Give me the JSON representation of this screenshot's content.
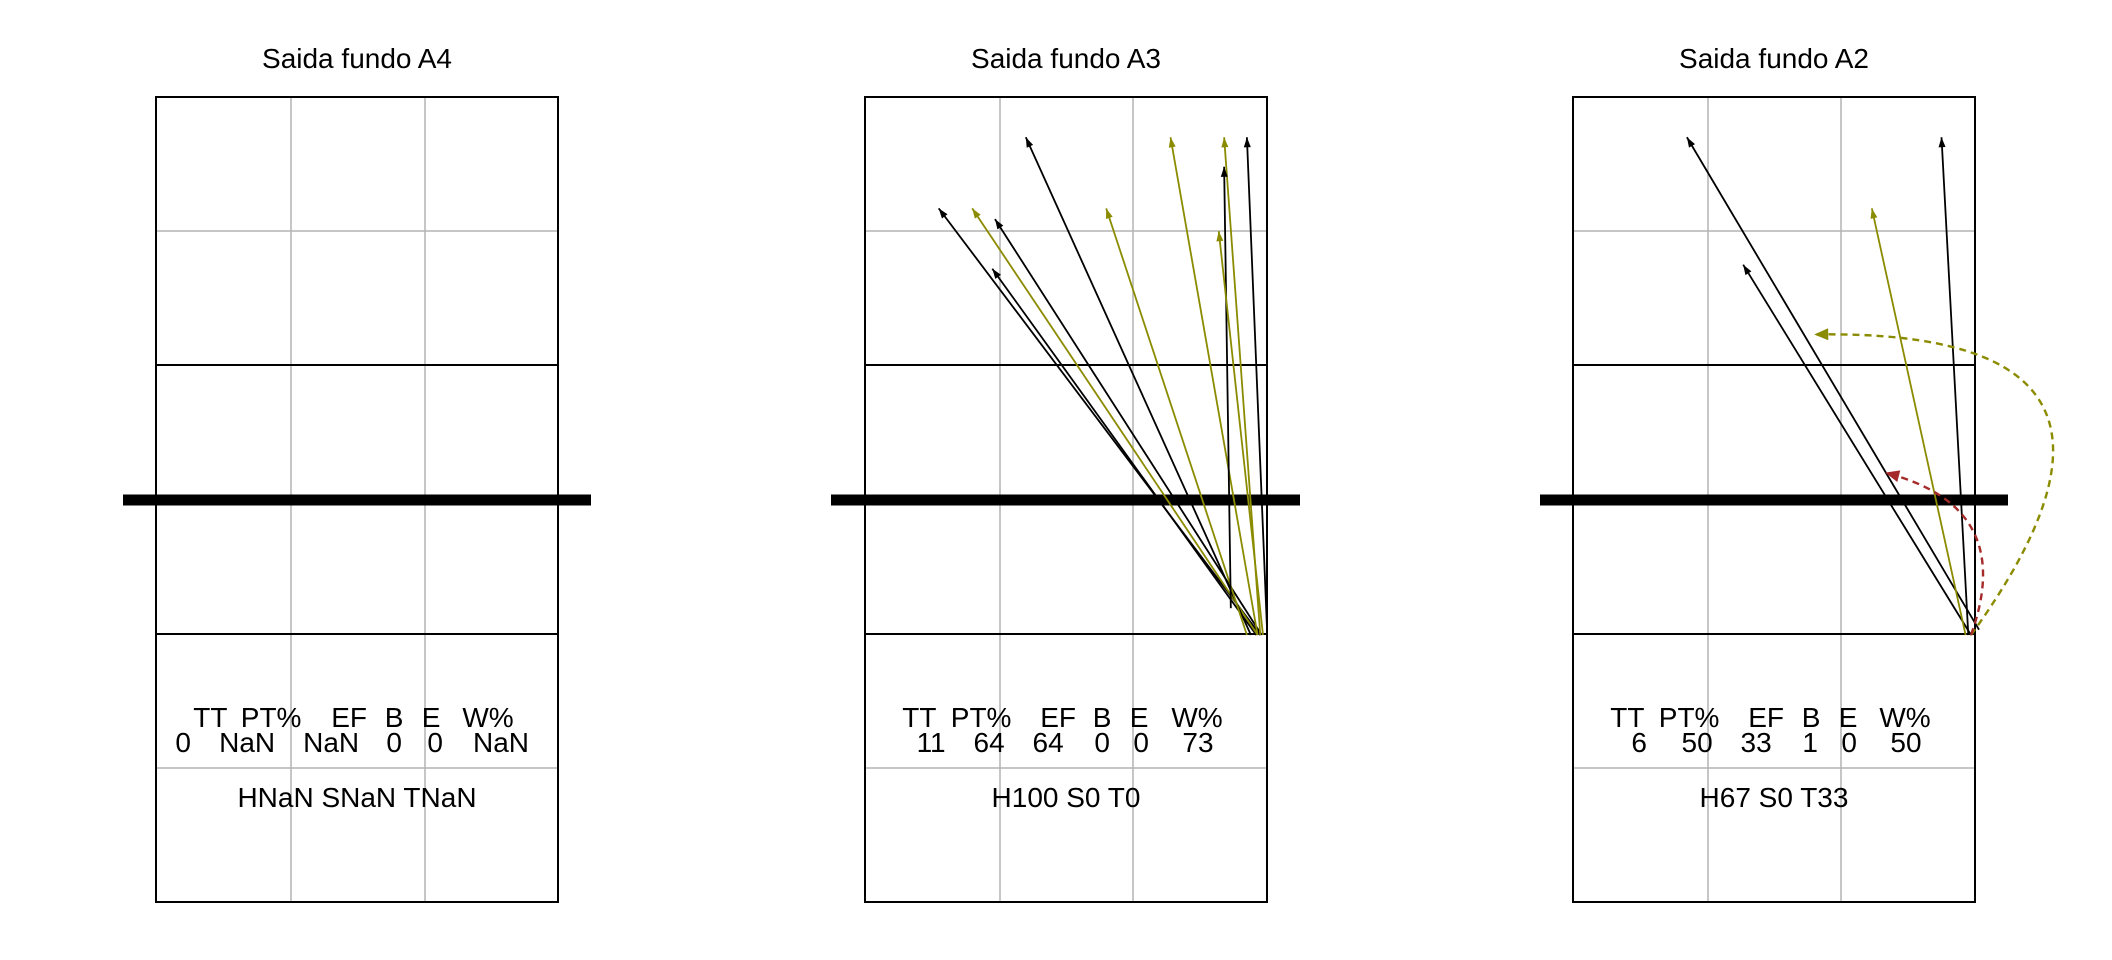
{
  "panels": [
    {
      "title": "Saida fundo A4",
      "stats_header": [
        "TT",
        "PT%",
        "EF",
        "B",
        "E",
        "W%"
      ],
      "stats_values": [
        "0",
        "NaN",
        "NaN",
        "0",
        "0",
        "NaN"
      ],
      "summary": "HNaN SNaN TNaN",
      "arrows": []
    },
    {
      "title": "Saida fundo A3",
      "stats_header": [
        "TT",
        "PT%",
        "EF",
        "B",
        "E",
        "W%"
      ],
      "stats_values": [
        "11",
        "64",
        "64",
        "0",
        "0",
        "73"
      ],
      "summary": "H100 S0 T0",
      "arrows": [
        {
          "from": [
            2.95,
            1.99
          ],
          "to": [
            0.55,
            5.17
          ],
          "color": "#000000"
        },
        {
          "from": [
            2.92,
            1.99
          ],
          "to": [
            0.95,
            4.72
          ],
          "color": "#000000"
        },
        {
          "from": [
            2.93,
            1.99
          ],
          "to": [
            0.8,
            5.17
          ],
          "color": "#8B8B00"
        },
        {
          "from": [
            2.96,
            1.99
          ],
          "to": [
            0.97,
            5.09
          ],
          "color": "#000000"
        },
        {
          "from": [
            2.88,
            1.99
          ],
          "to": [
            1.2,
            5.7
          ],
          "color": "#000000"
        },
        {
          "from": [
            2.85,
            1.99
          ],
          "to": [
            1.8,
            5.17
          ],
          "color": "#8B8B00"
        },
        {
          "from": [
            2.93,
            1.99
          ],
          "to": [
            2.28,
            5.7
          ],
          "color": "#8B8B00"
        },
        {
          "from": [
            2.95,
            1.99
          ],
          "to": [
            2.68,
            5.7
          ],
          "color": "#8B8B00"
        },
        {
          "from": [
            2.73,
            2.19
          ],
          "to": [
            2.68,
            5.48
          ],
          "color": "#000000"
        },
        {
          "from": [
            3.0,
            2.04
          ],
          "to": [
            2.85,
            5.7
          ],
          "color": "#000000"
        },
        {
          "from": [
            2.97,
            1.99
          ],
          "to": [
            2.64,
            5.0
          ],
          "color": "#8B8B00"
        }
      ],
      "curves": []
    },
    {
      "title": "Saida fundo A2",
      "stats_header": [
        "TT",
        "PT%",
        "EF",
        "B",
        "E",
        "W%"
      ],
      "stats_values": [
        "6",
        "50",
        "33",
        "1",
        "0",
        "50"
      ],
      "summary": "H67 S0 T33",
      "arrows": [
        {
          "from": [
            3.03,
            2.03
          ],
          "to": [
            0.85,
            5.7
          ],
          "color": "#000000"
        },
        {
          "from": [
            2.97,
            1.99
          ],
          "to": [
            1.27,
            4.75
          ],
          "color": "#000000"
        },
        {
          "from": [
            2.93,
            1.99
          ],
          "to": [
            2.23,
            5.17
          ],
          "color": "#8B8B00"
        },
        {
          "from": [
            2.95,
            1.99
          ],
          "to": [
            2.75,
            5.7
          ],
          "color": "#000000"
        }
      ],
      "curves": [
        {
          "from": [
            2.97,
            1.99
          ],
          "to": [
            1.8,
            4.23
          ],
          "color": "#8B8B00",
          "bulge": 1.0
        },
        {
          "from": [
            2.97,
            1.99
          ],
          "to": [
            2.33,
            3.2
          ],
          "color": "#A52A2A",
          "bulge": 0.55
        }
      ]
    }
  ]
}
